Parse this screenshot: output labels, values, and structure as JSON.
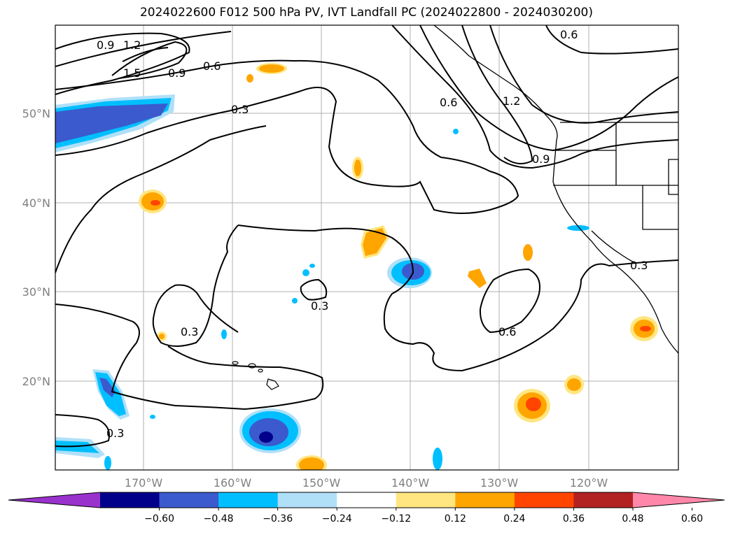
{
  "title": "2024022600 F012 500 hPa PV, IVT Landfall PC (2024022800 - 2024030200)",
  "lat_labels": [
    "50°N",
    "40°N",
    "30°N",
    "20°N"
  ],
  "lon_labels": [
    "170°W",
    "160°W",
    "150°W",
    "140°W",
    "130°W",
    "120°W"
  ],
  "contour_labels": [
    "0.9",
    "1.2",
    "1.5",
    "0.9",
    "0.6",
    "0.6",
    "0.3",
    "0.6",
    "1.2",
    "0.9",
    "0.3",
    "0.3",
    "0.6",
    "0.3",
    "0.3"
  ],
  "colorbar": {
    "ticks": [
      "−0.60",
      "−0.48",
      "−0.36",
      "−0.24",
      "−0.12",
      "0.12",
      "0.24",
      "0.36",
      "0.48",
      "0.60"
    ],
    "colors": [
      "#9932cc",
      "#00008b",
      "#3a5acd",
      "#00bfff",
      "#b0e0f8",
      "#ffffff",
      "#ffe680",
      "#ffa500",
      "#ff4500",
      "#b22222",
      "#ff88aa"
    ]
  }
}
